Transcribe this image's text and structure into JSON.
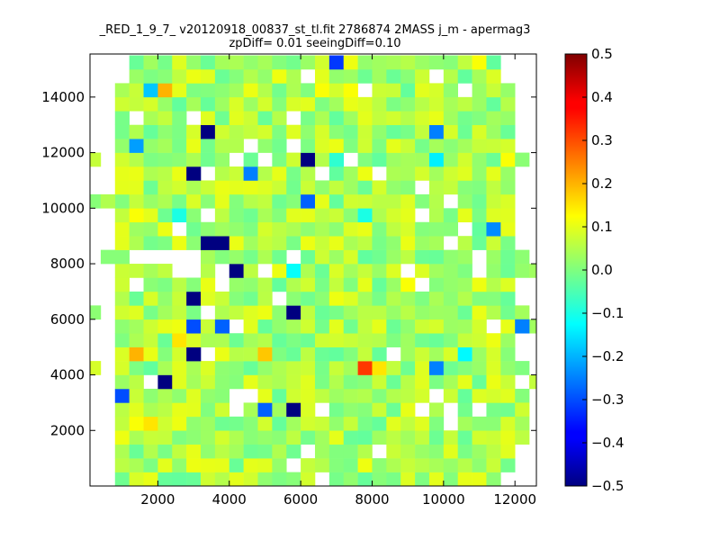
{
  "chart_data": {
    "type": "heatmap",
    "title": "_RED_1_9_7_ v20120918_00837_st_tl.fit 2786874 2MASS j_m - apermag3",
    "subtitle": "zpDiff= 0.01 seeingDiff=0.10",
    "xlabel": "",
    "ylabel": "",
    "xlim": [
      100,
      12600
    ],
    "ylim": [
      0,
      15550
    ],
    "x_ticks": [
      2000,
      4000,
      6000,
      8000,
      10000,
      12000
    ],
    "x_tick_labels": [
      "2000",
      "4000",
      "6000",
      "8000",
      "10000",
      "12000"
    ],
    "y_ticks": [
      2000,
      4000,
      6000,
      8000,
      10000,
      12000,
      14000
    ],
    "y_tick_labels": [
      "2000",
      "4000",
      "6000",
      "8000",
      "10000",
      "12000",
      "14000"
    ],
    "bin_size": [
      400,
      500
    ],
    "colormap": "jet",
    "color_range": [
      -0.5,
      0.5
    ],
    "colorbar_ticks": [
      -0.5,
      -0.4,
      -0.3,
      -0.2,
      -0.1,
      0.0,
      0.1,
      0.2,
      0.3,
      0.4,
      0.5
    ],
    "colorbar_tick_labels": [
      "−0.5",
      "−0.4",
      "−0.3",
      "−0.2",
      "−0.1",
      "0.0",
      "0.1",
      "0.2",
      "0.3",
      "0.4",
      "0.5"
    ],
    "grid": false,
    "base_value": 0.04,
    "cells": [
      {
        "x": 3400,
        "y": 12750,
        "value": -0.5
      },
      {
        "x": 6200,
        "y": 11750,
        "value": -0.5
      },
      {
        "x": 3000,
        "y": 11250,
        "value": -0.5
      },
      {
        "x": 3400,
        "y": 8750,
        "value": -0.5
      },
      {
        "x": 3800,
        "y": 8750,
        "value": -0.5
      },
      {
        "x": 4200,
        "y": 7750,
        "value": -0.5
      },
      {
        "x": 3000,
        "y": 6750,
        "value": -0.5
      },
      {
        "x": 5800,
        "y": 6250,
        "value": -0.5
      },
      {
        "x": 3000,
        "y": 4750,
        "value": -0.5
      },
      {
        "x": 2200,
        "y": 3750,
        "value": -0.5
      },
      {
        "x": 5800,
        "y": 2750,
        "value": -0.5
      },
      {
        "x": 7000,
        "y": 15250,
        "value": -0.32
      },
      {
        "x": 1800,
        "y": 14250,
        "value": -0.18
      },
      {
        "x": 1400,
        "y": 12250,
        "value": -0.22
      },
      {
        "x": 9800,
        "y": 12750,
        "value": -0.25
      },
      {
        "x": 4600,
        "y": 11250,
        "value": -0.25
      },
      {
        "x": 6200,
        "y": 10250,
        "value": -0.28
      },
      {
        "x": 11400,
        "y": 9250,
        "value": -0.24
      },
      {
        "x": 3000,
        "y": 5750,
        "value": -0.3
      },
      {
        "x": 3800,
        "y": 5750,
        "value": -0.28
      },
      {
        "x": 1000,
        "y": 3250,
        "value": -0.3
      },
      {
        "x": 5000,
        "y": 2750,
        "value": -0.28
      },
      {
        "x": 9800,
        "y": 4250,
        "value": -0.25
      },
      {
        "x": 12200,
        "y": 5750,
        "value": -0.25
      },
      {
        "x": 5800,
        "y": 7750,
        "value": -0.12
      },
      {
        "x": 9800,
        "y": 11750,
        "value": -0.14
      },
      {
        "x": 7000,
        "y": 11750,
        "value": -0.08
      },
      {
        "x": 2600,
        "y": 9750,
        "value": -0.1
      },
      {
        "x": 7800,
        "y": 9750,
        "value": -0.1
      },
      {
        "x": 10600,
        "y": 4750,
        "value": -0.13
      },
      {
        "x": 2200,
        "y": 14250,
        "value": 0.2
      },
      {
        "x": 1400,
        "y": 4750,
        "value": 0.2
      },
      {
        "x": 5000,
        "y": 4750,
        "value": 0.18
      },
      {
        "x": 2600,
        "y": 5250,
        "value": 0.15
      },
      {
        "x": 1800,
        "y": 2250,
        "value": 0.15
      },
      {
        "x": 1400,
        "y": 2250,
        "value": 0.12
      },
      {
        "x": 7800,
        "y": 4250,
        "value": 0.32
      },
      {
        "x": 8200,
        "y": 4250,
        "value": 0.15
      },
      {
        "x": 6600,
        "y": 14250,
        "value": 0.12
      },
      {
        "x": 7400,
        "y": 14250,
        "value": 0.12
      },
      {
        "x": 11000,
        "y": 15250,
        "value": 0.12
      },
      {
        "x": 11800,
        "y": 11750,
        "value": 0.12
      },
      {
        "x": 1400,
        "y": 9750,
        "value": 0.12
      },
      {
        "x": 9000,
        "y": 7250,
        "value": 0.12
      },
      {
        "x": 1000,
        "y": 11750,
        "value": 0.08
      },
      {
        "x": 10600,
        "y": 3750,
        "value": 0.1
      },
      {
        "x": 7000,
        "y": 1750,
        "value": 0.1
      },
      {
        "x": 8600,
        "y": 12250,
        "value": 0.1
      }
    ],
    "empty_cells": [
      [
        3000,
        13250
      ],
      [
        5800,
        13250
      ],
      [
        4600,
        12250
      ],
      [
        5800,
        12250
      ],
      [
        10600,
        14250
      ],
      [
        7800,
        14250
      ],
      [
        4200,
        11750
      ],
      [
        5000,
        11750
      ],
      [
        7400,
        11750
      ],
      [
        3400,
        11250
      ],
      [
        6600,
        11250
      ],
      [
        8200,
        11250
      ],
      [
        9400,
        10750
      ],
      [
        10200,
        10250
      ],
      [
        3400,
        9750
      ],
      [
        9400,
        9750
      ],
      [
        2600,
        9250
      ],
      [
        10600,
        9250
      ],
      [
        1400,
        8250
      ],
      [
        1800,
        8250
      ],
      [
        2200,
        8250
      ],
      [
        2600,
        8250
      ],
      [
        3000,
        8250
      ],
      [
        5800,
        8250
      ],
      [
        11000,
        8250
      ],
      [
        2600,
        7750
      ],
      [
        3000,
        7750
      ],
      [
        3800,
        7750
      ],
      [
        5000,
        7750
      ],
      [
        9000,
        7750
      ],
      [
        11000,
        7750
      ],
      [
        1400,
        7250
      ],
      [
        3800,
        7250
      ],
      [
        9400,
        7250
      ],
      [
        5400,
        6750
      ],
      [
        3400,
        6250
      ],
      [
        4200,
        5750
      ],
      [
        11400,
        5750
      ],
      [
        3400,
        4750
      ],
      [
        8600,
        4750
      ],
      [
        1800,
        3750
      ],
      [
        9800,
        3250
      ],
      [
        4200,
        3250
      ],
      [
        4600,
        3250
      ],
      [
        4200,
        2750
      ],
      [
        6600,
        2750
      ],
      [
        9400,
        2750
      ],
      [
        10200,
        2750
      ],
      [
        11000,
        2750
      ],
      [
        10200,
        2250
      ],
      [
        6200,
        1250
      ],
      [
        8200,
        1250
      ],
      [
        5800,
        750
      ],
      [
        6600,
        250
      ],
      [
        6200,
        14750
      ],
      [
        9800,
        14750
      ],
      [
        1400,
        13250
      ],
      [
        12200,
        12750
      ],
      [
        10200,
        8750
      ]
    ]
  }
}
